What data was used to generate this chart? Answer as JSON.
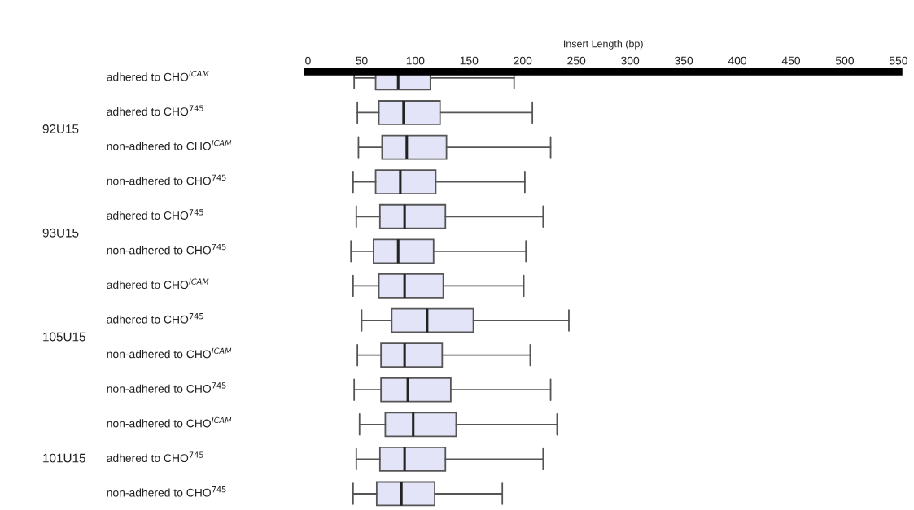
{
  "chart_data": {
    "type": "box",
    "orientation": "horizontal",
    "xlabel": "Insert Length (bp)",
    "categories": [
      "adhered to CHO$^{ICAM}$",
      "adhered to CHO$^{745}$",
      "non-adhered to CHO$^{ICAM}$",
      "non-adhered to CHO$^{745}$",
      "adhered to CHO$^{745}$",
      "non-adhered to CHO$^{745}$",
      "adhered to CHO$^{ICAM}$",
      "adhered to CHO$^{745}$",
      "non-adhered to CHO$^{ICAM}$",
      "non-adhered to CHO$^{745}$",
      "non-adhered to CHO$^{ICAM}$",
      "adhered to CHO$^{745}$",
      "non-adhered to CHO$^{745}$"
    ],
    "annotations": [
      "92U15",
      "93U15",
      "105U15",
      "101U15"
    ],
    "color": "#e4e4f8",
    "boxes": [
      {
        "low": 43,
        "q1": 63,
        "median": 84,
        "q3": 114,
        "high": 192
      },
      {
        "low": 46,
        "q1": 66,
        "median": 89,
        "q3": 123,
        "high": 209
      },
      {
        "low": 47,
        "q1": 69,
        "median": 92,
        "q3": 129,
        "high": 226
      },
      {
        "low": 42,
        "q1": 63,
        "median": 86,
        "q3": 119,
        "high": 202
      },
      {
        "low": 45,
        "q1": 67,
        "median": 90,
        "q3": 128,
        "high": 219
      },
      {
        "low": 40,
        "q1": 61,
        "median": 84,
        "q3": 117,
        "high": 203
      },
      {
        "low": 42,
        "q1": 66,
        "median": 90,
        "q3": 126,
        "high": 201
      },
      {
        "low": 50,
        "q1": 78,
        "median": 111,
        "q3": 154,
        "high": 243
      },
      {
        "low": 46,
        "q1": 68,
        "median": 90,
        "q3": 125,
        "high": 207
      },
      {
        "low": 43,
        "q1": 68,
        "median": 93,
        "q3": 133,
        "high": 226
      },
      {
        "low": 48,
        "q1": 72,
        "median": 98,
        "q3": 138,
        "high": 232
      },
      {
        "low": 45,
        "q1": 67,
        "median": 90,
        "q3": 128,
        "high": 219
      },
      {
        "low": 42,
        "q1": 64,
        "median": 87,
        "q3": 118,
        "high": 181
      }
    ],
    "xlim": [
      0,
      550
    ],
    "xticks": [
      0,
      50,
      100,
      150,
      200,
      250,
      300,
      350,
      400,
      450,
      500,
      550
    ],
    "grid": false,
    "legend": false
  }
}
